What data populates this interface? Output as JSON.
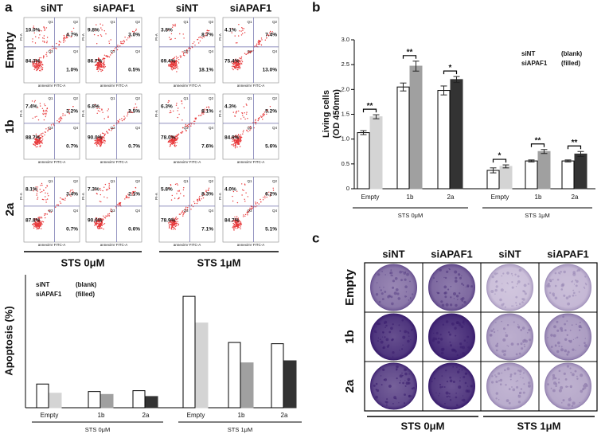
{
  "panel_labels": [
    "a",
    "b",
    "c"
  ],
  "flow_cytometry": {
    "columns": [
      "siNT",
      "siAPAF1",
      "siNT",
      "siAPAF1"
    ],
    "rows": [
      "Empty",
      "1b",
      "2a"
    ],
    "quadrant_names": [
      "Q1",
      "Q2",
      "Q3",
      "Q4"
    ],
    "x_label": "annexinV FITC-A",
    "y_label": "PI-A",
    "group_labels": [
      "STS 0μM",
      "STS 1μM"
    ],
    "quadrants": [
      [
        [
          "10.0%",
          "4.7%",
          "84.3%",
          "1.0%"
        ],
        [
          "9.8%",
          "3.0%",
          "86.7%",
          "0.5%"
        ],
        [
          "3.8%",
          "8.7%",
          "69.4%",
          "18.1%"
        ],
        [
          "4.1%",
          "7.4%",
          "75.4%",
          "13.0%"
        ]
      ],
      [
        [
          "7.4%",
          "3.2%",
          "88.7%",
          "0.7%"
        ],
        [
          "6.8%",
          "2.5%",
          "90.0%",
          "0.7%"
        ],
        [
          "6.3%",
          "8.1%",
          "78.0%",
          "7.6%"
        ],
        [
          "4.3%",
          "5.2%",
          "84.9%",
          "5.6%"
        ]
      ],
      [
        [
          "8.1%",
          "3.4%",
          "87.8%",
          "0.7%"
        ],
        [
          "7.3%",
          "2.1%",
          "90.0%",
          "0.6%"
        ],
        [
          "5.8%",
          "8.3%",
          "78.9%",
          "7.1%"
        ],
        [
          "4.0%",
          "6.2%",
          "84.7%",
          "5.1%"
        ]
      ]
    ]
  },
  "chart_data": [
    {
      "type": "bar",
      "y_label": "Apoptosis (%)",
      "categories": [
        "Empty",
        "1b",
        "2a",
        "Empty",
        "1b",
        "2a"
      ],
      "group_labels": [
        "STS 0μM",
        "STS 1μM"
      ],
      "ylim": [
        0,
        32
      ],
      "series": [
        {
          "name": "siNT",
          "fill_note": "(blank)",
          "color": "#ffffff",
          "values": [
            5.7,
            3.9,
            4.1,
            26.8,
            15.7,
            15.4
          ]
        },
        {
          "name": "siAPAF1",
          "fill_note": "(filled)",
          "colors": [
            "#d4d4d4",
            "#a0a0a0",
            "#333333",
            "#d4d4d4",
            "#a0a0a0",
            "#333333"
          ],
          "values": [
            3.5,
            3.2,
            2.7,
            20.4,
            10.8,
            11.3
          ]
        }
      ]
    },
    {
      "type": "errorbar",
      "y_label": [
        "Living cells",
        "(OD 450nm)"
      ],
      "categories": [
        "Empty",
        "1b",
        "2a",
        "Empty",
        "1b",
        "2a"
      ],
      "group_labels": [
        "STS 0μM",
        "STS 1μM"
      ],
      "ylim": [
        0,
        3
      ],
      "yticks": [
        0,
        0.5,
        {
          "value": 1,
          "label": "1.0"
        },
        1.5,
        {
          "value": 2,
          "label": "2.0"
        },
        2.5,
        {
          "value": 3,
          "label": "3.0"
        }
      ],
      "significance": [
        "**",
        "**",
        "*",
        "*",
        "**",
        "**"
      ],
      "series": [
        {
          "name": "siNT",
          "fill_note": "(blank)",
          "color": "#ffffff",
          "values": [
            1.13,
            2.05,
            1.98,
            0.37,
            0.56,
            0.56
          ],
          "errors": [
            0.04,
            0.08,
            0.09,
            0.05,
            0.02,
            0.02
          ]
        },
        {
          "name": "siAPAF1",
          "fill_note": "(filled)",
          "colors": [
            "#d4d4d4",
            "#a0a0a0",
            "#333333",
            "#d4d4d4",
            "#a0a0a0",
            "#333333"
          ],
          "values": [
            1.45,
            2.47,
            2.2,
            0.45,
            0.75,
            0.7
          ],
          "errors": [
            0.04,
            0.1,
            0.06,
            0.03,
            0.04,
            0.05
          ]
        }
      ]
    }
  ],
  "plates": {
    "columns": [
      "siNT",
      "siAPAF1",
      "siNT",
      "siAPAF1"
    ],
    "rows": [
      "Empty",
      "1b",
      "2a"
    ],
    "group_labels": [
      "STS 0μM",
      "STS 1μM"
    ]
  }
}
